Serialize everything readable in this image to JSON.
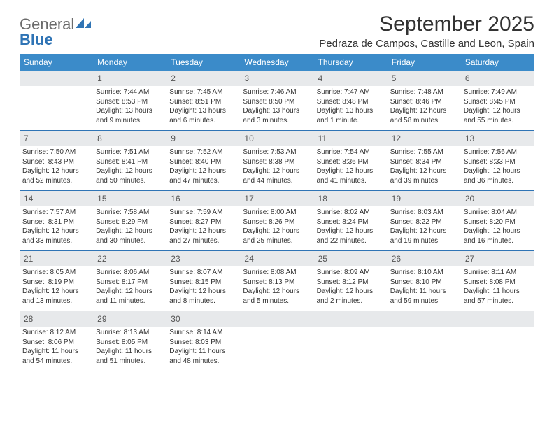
{
  "logo": {
    "general": "General",
    "blue": "Blue"
  },
  "title": "September 2025",
  "location": "Pedraza de Campos, Castille and Leon, Spain",
  "colors": {
    "header_bg": "#3b8bc9",
    "header_text": "#ffffff",
    "daynum_bg": "#e7e9eb",
    "sep": "#2f74b5",
    "logo_gray": "#6b6b6b",
    "logo_blue": "#2f74b5",
    "body_text": "#333333"
  },
  "day_headers": [
    "Sunday",
    "Monday",
    "Tuesday",
    "Wednesday",
    "Thursday",
    "Friday",
    "Saturday"
  ],
  "weeks": [
    [
      {
        "num": "",
        "sunrise": "",
        "sunset": "",
        "daylight": ""
      },
      {
        "num": "1",
        "sunrise": "Sunrise: 7:44 AM",
        "sunset": "Sunset: 8:53 PM",
        "daylight": "Daylight: 13 hours and 9 minutes."
      },
      {
        "num": "2",
        "sunrise": "Sunrise: 7:45 AM",
        "sunset": "Sunset: 8:51 PM",
        "daylight": "Daylight: 13 hours and 6 minutes."
      },
      {
        "num": "3",
        "sunrise": "Sunrise: 7:46 AM",
        "sunset": "Sunset: 8:50 PM",
        "daylight": "Daylight: 13 hours and 3 minutes."
      },
      {
        "num": "4",
        "sunrise": "Sunrise: 7:47 AM",
        "sunset": "Sunset: 8:48 PM",
        "daylight": "Daylight: 13 hours and 1 minute."
      },
      {
        "num": "5",
        "sunrise": "Sunrise: 7:48 AM",
        "sunset": "Sunset: 8:46 PM",
        "daylight": "Daylight: 12 hours and 58 minutes."
      },
      {
        "num": "6",
        "sunrise": "Sunrise: 7:49 AM",
        "sunset": "Sunset: 8:45 PM",
        "daylight": "Daylight: 12 hours and 55 minutes."
      }
    ],
    [
      {
        "num": "7",
        "sunrise": "Sunrise: 7:50 AM",
        "sunset": "Sunset: 8:43 PM",
        "daylight": "Daylight: 12 hours and 52 minutes."
      },
      {
        "num": "8",
        "sunrise": "Sunrise: 7:51 AM",
        "sunset": "Sunset: 8:41 PM",
        "daylight": "Daylight: 12 hours and 50 minutes."
      },
      {
        "num": "9",
        "sunrise": "Sunrise: 7:52 AM",
        "sunset": "Sunset: 8:40 PM",
        "daylight": "Daylight: 12 hours and 47 minutes."
      },
      {
        "num": "10",
        "sunrise": "Sunrise: 7:53 AM",
        "sunset": "Sunset: 8:38 PM",
        "daylight": "Daylight: 12 hours and 44 minutes."
      },
      {
        "num": "11",
        "sunrise": "Sunrise: 7:54 AM",
        "sunset": "Sunset: 8:36 PM",
        "daylight": "Daylight: 12 hours and 41 minutes."
      },
      {
        "num": "12",
        "sunrise": "Sunrise: 7:55 AM",
        "sunset": "Sunset: 8:34 PM",
        "daylight": "Daylight: 12 hours and 39 minutes."
      },
      {
        "num": "13",
        "sunrise": "Sunrise: 7:56 AM",
        "sunset": "Sunset: 8:33 PM",
        "daylight": "Daylight: 12 hours and 36 minutes."
      }
    ],
    [
      {
        "num": "14",
        "sunrise": "Sunrise: 7:57 AM",
        "sunset": "Sunset: 8:31 PM",
        "daylight": "Daylight: 12 hours and 33 minutes."
      },
      {
        "num": "15",
        "sunrise": "Sunrise: 7:58 AM",
        "sunset": "Sunset: 8:29 PM",
        "daylight": "Daylight: 12 hours and 30 minutes."
      },
      {
        "num": "16",
        "sunrise": "Sunrise: 7:59 AM",
        "sunset": "Sunset: 8:27 PM",
        "daylight": "Daylight: 12 hours and 27 minutes."
      },
      {
        "num": "17",
        "sunrise": "Sunrise: 8:00 AM",
        "sunset": "Sunset: 8:26 PM",
        "daylight": "Daylight: 12 hours and 25 minutes."
      },
      {
        "num": "18",
        "sunrise": "Sunrise: 8:02 AM",
        "sunset": "Sunset: 8:24 PM",
        "daylight": "Daylight: 12 hours and 22 minutes."
      },
      {
        "num": "19",
        "sunrise": "Sunrise: 8:03 AM",
        "sunset": "Sunset: 8:22 PM",
        "daylight": "Daylight: 12 hours and 19 minutes."
      },
      {
        "num": "20",
        "sunrise": "Sunrise: 8:04 AM",
        "sunset": "Sunset: 8:20 PM",
        "daylight": "Daylight: 12 hours and 16 minutes."
      }
    ],
    [
      {
        "num": "21",
        "sunrise": "Sunrise: 8:05 AM",
        "sunset": "Sunset: 8:19 PM",
        "daylight": "Daylight: 12 hours and 13 minutes."
      },
      {
        "num": "22",
        "sunrise": "Sunrise: 8:06 AM",
        "sunset": "Sunset: 8:17 PM",
        "daylight": "Daylight: 12 hours and 11 minutes."
      },
      {
        "num": "23",
        "sunrise": "Sunrise: 8:07 AM",
        "sunset": "Sunset: 8:15 PM",
        "daylight": "Daylight: 12 hours and 8 minutes."
      },
      {
        "num": "24",
        "sunrise": "Sunrise: 8:08 AM",
        "sunset": "Sunset: 8:13 PM",
        "daylight": "Daylight: 12 hours and 5 minutes."
      },
      {
        "num": "25",
        "sunrise": "Sunrise: 8:09 AM",
        "sunset": "Sunset: 8:12 PM",
        "daylight": "Daylight: 12 hours and 2 minutes."
      },
      {
        "num": "26",
        "sunrise": "Sunrise: 8:10 AM",
        "sunset": "Sunset: 8:10 PM",
        "daylight": "Daylight: 11 hours and 59 minutes."
      },
      {
        "num": "27",
        "sunrise": "Sunrise: 8:11 AM",
        "sunset": "Sunset: 8:08 PM",
        "daylight": "Daylight: 11 hours and 57 minutes."
      }
    ],
    [
      {
        "num": "28",
        "sunrise": "Sunrise: 8:12 AM",
        "sunset": "Sunset: 8:06 PM",
        "daylight": "Daylight: 11 hours and 54 minutes."
      },
      {
        "num": "29",
        "sunrise": "Sunrise: 8:13 AM",
        "sunset": "Sunset: 8:05 PM",
        "daylight": "Daylight: 11 hours and 51 minutes."
      },
      {
        "num": "30",
        "sunrise": "Sunrise: 8:14 AM",
        "sunset": "Sunset: 8:03 PM",
        "daylight": "Daylight: 11 hours and 48 minutes."
      },
      {
        "num": "",
        "sunrise": "",
        "sunset": "",
        "daylight": ""
      },
      {
        "num": "",
        "sunrise": "",
        "sunset": "",
        "daylight": ""
      },
      {
        "num": "",
        "sunrise": "",
        "sunset": "",
        "daylight": ""
      },
      {
        "num": "",
        "sunrise": "",
        "sunset": "",
        "daylight": ""
      }
    ]
  ]
}
